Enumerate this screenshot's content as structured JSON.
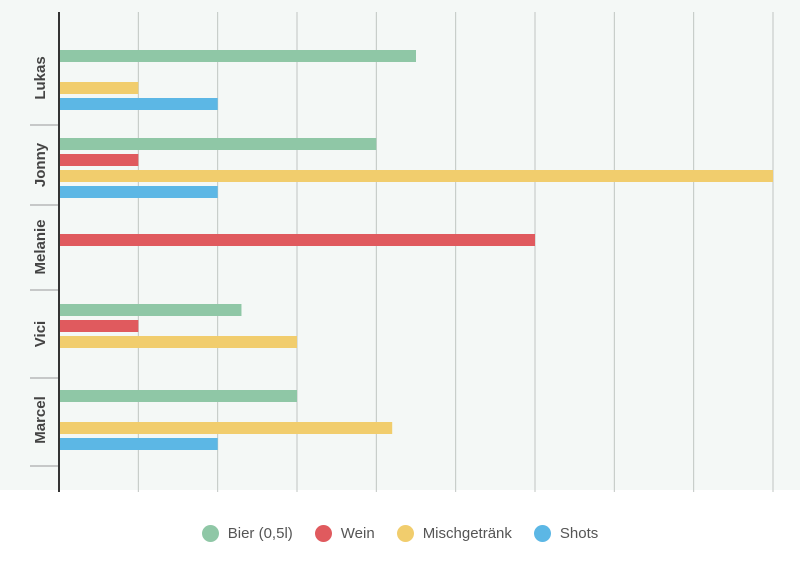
{
  "chart_data": {
    "type": "bar",
    "orientation": "horizontal",
    "categories": [
      "Lukas",
      "Jonny",
      "Melanie",
      "Vici",
      "Marcel"
    ],
    "series": [
      {
        "name": "Bier (0,5l)",
        "color": "#8fc7a6",
        "values": [
          4.5,
          4,
          null,
          2.3,
          3
        ]
      },
      {
        "name": "Wein",
        "color": "#e05a5e",
        "values": [
          null,
          1,
          6,
          1,
          null
        ]
      },
      {
        "name": "Mischgetränk",
        "color": "#f1cd6d",
        "values": [
          1,
          9,
          null,
          3,
          4.2
        ]
      },
      {
        "name": "Shots",
        "color": "#5cb7e5",
        "values": [
          2,
          2,
          null,
          null,
          2
        ]
      }
    ],
    "xlim": [
      0,
      9
    ],
    "x_tick_step": 1,
    "xticks_labeled": false,
    "grid": true,
    "legend_position": "bottom"
  },
  "style": {
    "plot_background": "#f4f8f6",
    "grid_color": "#bfc5c2",
    "axis_color": "#333333"
  }
}
